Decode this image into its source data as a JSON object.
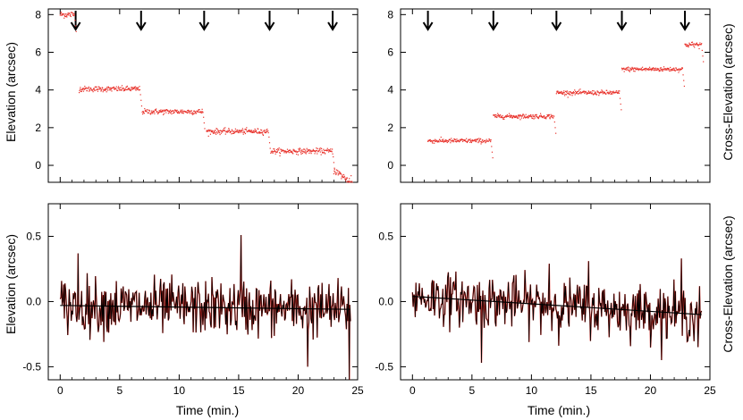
{
  "figure": {
    "xlabel": "Time (min.)",
    "arrow_icon": "down-arrow-icon",
    "colors": {
      "data": "#e8312a",
      "line": "#000000",
      "fit": "#000000",
      "axis": "#000000"
    }
  },
  "chart_data": [
    {
      "id": "top-left",
      "type": "scatter",
      "title": "",
      "xlabel": "",
      "ylabel": "Elevation (arcsec)",
      "xlim": [
        -1,
        25
      ],
      "ylim": [
        -0.9,
        8.3
      ],
      "xticks": [
        0,
        5,
        10,
        15,
        20,
        25
      ],
      "show_xtick_labels": false,
      "yticks": [
        0,
        2,
        4,
        6,
        8
      ],
      "ytick_labels": [
        "0",
        "2",
        "4",
        "6",
        "8"
      ],
      "arrows_x": [
        1.3,
        6.8,
        12.1,
        17.6,
        22.9
      ],
      "segments": [
        {
          "x_start": 0.0,
          "x_end": 1.2,
          "level": 8.0,
          "noise": 0.15
        },
        {
          "x_start": 1.6,
          "x_end": 6.7,
          "level": 4.05,
          "noise": 0.12
        },
        {
          "x_start": 6.9,
          "x_end": 12.0,
          "level": 2.85,
          "noise": 0.12
        },
        {
          "x_start": 12.3,
          "x_end": 17.5,
          "level": 1.8,
          "noise": 0.12
        },
        {
          "x_start": 17.7,
          "x_end": 22.9,
          "level": 0.75,
          "noise": 0.12
        },
        {
          "x_start": 23.0,
          "x_end": 24.4,
          "level": -0.25,
          "noise": 0.18,
          "slope": -0.45
        }
      ]
    },
    {
      "id": "top-right",
      "type": "scatter",
      "title": "",
      "xlabel": "",
      "ylabel": "Cross-Elevation (arcsec)",
      "xlim": [
        -1,
        25
      ],
      "ylim": [
        -0.9,
        8.3
      ],
      "xticks": [
        0,
        5,
        10,
        15,
        20,
        25
      ],
      "show_xtick_labels": false,
      "yticks": [
        0,
        2,
        4,
        6,
        8
      ],
      "ytick_labels": [
        "0",
        "2",
        "4",
        "6",
        "8"
      ],
      "arrows_x": [
        1.3,
        6.8,
        12.1,
        17.6,
        22.9
      ],
      "segments": [
        {
          "x_start": 1.3,
          "x_end": 6.6,
          "level": 1.3,
          "noise": 0.1
        },
        {
          "x_start": 6.8,
          "x_end": 11.9,
          "level": 2.6,
          "noise": 0.1
        },
        {
          "x_start": 12.1,
          "x_end": 17.4,
          "level": 3.85,
          "noise": 0.1
        },
        {
          "x_start": 17.6,
          "x_end": 22.7,
          "level": 5.1,
          "noise": 0.1
        },
        {
          "x_start": 22.9,
          "x_end": 24.3,
          "level": 6.4,
          "noise": 0.12
        }
      ]
    },
    {
      "id": "bottom-left",
      "type": "line",
      "title": "",
      "xlabel": "Time (min.)",
      "ylabel": "Elevation (arcsec)",
      "xlim": [
        -1,
        25
      ],
      "ylim": [
        -0.6,
        0.75
      ],
      "xticks": [
        0,
        5,
        10,
        15,
        20,
        25
      ],
      "xtick_labels": [
        "0",
        "5",
        "10",
        "15",
        "20",
        "25"
      ],
      "yticks": [
        -0.5,
        0.0,
        0.5
      ],
      "ytick_labels": [
        "-0.5",
        "0.0",
        "0.5"
      ],
      "x_range": [
        0,
        24.4
      ],
      "n_points": 420,
      "residual_amplitude": 0.15,
      "fit_line": {
        "x": [
          0,
          24.4
        ],
        "y": [
          -0.03,
          -0.06
        ]
      },
      "notable_points": [
        {
          "x": 1.5,
          "y": 0.37
        },
        {
          "x": 15.2,
          "y": 0.51
        },
        {
          "x": 20.8,
          "y": -0.5
        },
        {
          "x": 24.3,
          "y": -0.6
        }
      ]
    },
    {
      "id": "bottom-right",
      "type": "line",
      "title": "",
      "xlabel": "Time (min.)",
      "ylabel": "Cross-Elevation (arcsec)",
      "xlim": [
        -1,
        25
      ],
      "ylim": [
        -0.6,
        0.75
      ],
      "xticks": [
        0,
        5,
        10,
        15,
        20,
        25
      ],
      "xtick_labels": [
        "0",
        "5",
        "10",
        "15",
        "20",
        "25"
      ],
      "yticks": [
        -0.5,
        0.0,
        0.5
      ],
      "ytick_labels": [
        "-0.5",
        "0.0",
        "0.5"
      ],
      "x_range": [
        0,
        24.3
      ],
      "n_points": 420,
      "residual_amplitude": 0.14,
      "fit_line": {
        "x": [
          0,
          24.3
        ],
        "y": [
          0.04,
          -0.1
        ]
      },
      "notable_points": [
        {
          "x": 5.8,
          "y": -0.47
        },
        {
          "x": 11.5,
          "y": 0.29
        },
        {
          "x": 14.8,
          "y": 0.31
        },
        {
          "x": 22.6,
          "y": 0.33
        },
        {
          "x": 24.0,
          "y": -0.35
        }
      ]
    }
  ]
}
